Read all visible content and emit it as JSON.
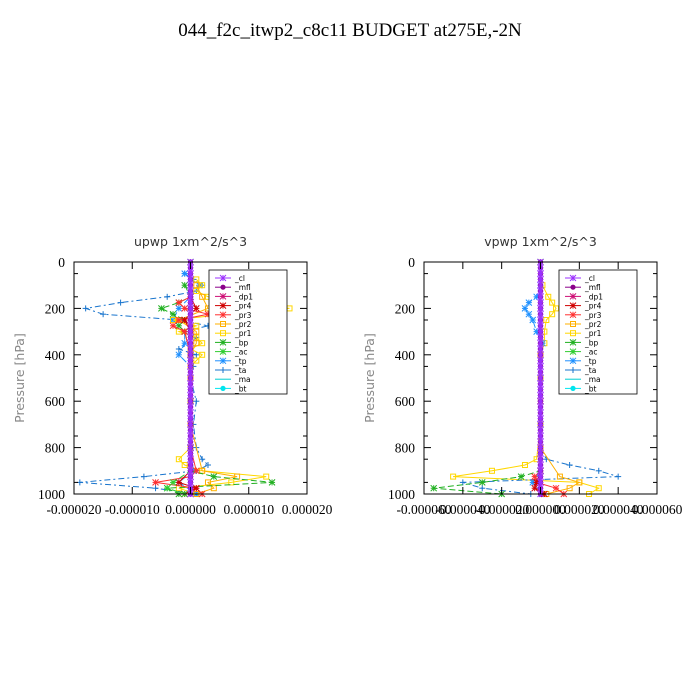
{
  "figure": {
    "title": "044_f2c_itwp2_c8c11  BUDGET at275E,-2N"
  },
  "legend_items": [
    {
      "label": "_cl",
      "color": "#9b30ff",
      "marker": "star"
    },
    {
      "label": "_mfl",
      "color": "#8b008b",
      "marker": "dot"
    },
    {
      "label": "_dp1",
      "color": "#cd1076",
      "marker": "star"
    },
    {
      "label": "_pr4",
      "color": "#d00000",
      "marker": "star"
    },
    {
      "label": "_pr3",
      "color": "#ff3030",
      "marker": "star"
    },
    {
      "label": "_pr2",
      "color": "#ffb000",
      "marker": "square"
    },
    {
      "label": "_pr1",
      "color": "#ffd700",
      "marker": "square"
    },
    {
      "label": "_bp",
      "color": "#20b020",
      "marker": "star"
    },
    {
      "label": "_ac",
      "color": "#32cd32",
      "marker": "star"
    },
    {
      "label": "_tp",
      "color": "#1e90ff",
      "marker": "star"
    },
    {
      "label": "_ta",
      "color": "#1874cd",
      "marker": "plus"
    },
    {
      "label": "_ma",
      "color": "#00ced1",
      "marker": "none"
    },
    {
      "label": "_bt",
      "color": "#00e5ee",
      "marker": "dot"
    }
  ],
  "chart_data": [
    {
      "type": "line",
      "title": "upwp  1xm^2/s^3",
      "ylabel": "Pressure [hPa]",
      "xlim": [
        -2e-05,
        2e-05
      ],
      "ylim": [
        1000,
        0
      ],
      "x_ticks": [
        "-0.000020",
        "-0.000010",
        "0.000000",
        "0.000010",
        "0.000020"
      ],
      "y_ticks": [
        "0",
        "200",
        "400",
        "600",
        "800",
        "1000"
      ],
      "series": [
        {
          "name": "_ta",
          "color": "#1874cd",
          "dash": "6,3,2,3",
          "marker": "plus",
          "y": [
            50,
            75,
            100,
            125,
            150,
            175,
            200,
            225,
            250,
            275,
            300,
            325,
            350,
            375,
            400,
            425,
            450,
            500,
            600,
            700,
            800,
            850,
            875,
            900,
            925,
            950,
            975,
            1000
          ],
          "x": [
            -1e-06,
            5e-07,
            2e-06,
            1e-06,
            -4e-06,
            -1.2e-05,
            -1.8e-05,
            -1.5e-05,
            -2e-06,
            3e-06,
            -1e-06,
            1e-06,
            0.0,
            -2e-06,
            1e-06,
            0.0,
            5e-07,
            0.0,
            1e-06,
            5e-07,
            1e-06,
            2e-06,
            3e-06,
            1e-06,
            -8e-06,
            -1.9e-05,
            -6e-06,
            1e-06
          ]
        },
        {
          "name": "_tp",
          "color": "#1e90ff",
          "dash": "6,3",
          "marker": "star",
          "y": [
            50,
            100,
            150,
            200,
            250,
            300,
            350,
            400,
            450,
            500,
            600,
            700,
            800,
            900,
            950,
            1000
          ],
          "x": [
            -1e-06,
            1.5e-06,
            0.0,
            -2e-06,
            -3e-06,
            -1e-06,
            -1e-06,
            -2e-06,
            0.0,
            0.0,
            0.0,
            0.0,
            0.0,
            5e-07,
            -2e-06,
            1e-06
          ]
        },
        {
          "name": "_pr1",
          "color": "#ffd700",
          "dash": "",
          "marker": "square",
          "y": [
            75,
            100,
            125,
            150,
            175,
            200,
            225,
            250,
            275,
            300,
            325,
            350,
            375,
            400,
            425,
            450,
            500,
            600,
            700,
            800,
            850,
            875,
            900,
            925,
            950,
            975,
            1000
          ],
          "x": [
            1e-06,
            2e-06,
            1e-06,
            3e-06,
            8e-06,
            1.7e-05,
            6e-06,
            -3e-06,
            1e-06,
            -2e-06,
            1e-06,
            2e-06,
            0.0,
            2e-06,
            1e-06,
            0.0,
            0.0,
            0.0,
            0.0,
            0.0,
            -2e-06,
            -1e-06,
            2e-06,
            1.3e-05,
            7e-06,
            -2e-06,
            1e-06
          ]
        },
        {
          "name": "_pr2",
          "color": "#ffb000",
          "dash": "",
          "marker": "square",
          "y": [
            100,
            150,
            200,
            250,
            300,
            350,
            400,
            500,
            700,
            900,
            925,
            950,
            975,
            1000
          ],
          "x": [
            1e-06,
            2e-06,
            3e-06,
            -2e-06,
            1e-06,
            1e-06,
            0.0,
            0.0,
            0.0,
            2e-06,
            8e-06,
            3e-06,
            4e-06,
            1e-06
          ]
        },
        {
          "name": "_bp",
          "color": "#20b020",
          "dash": "6,3",
          "marker": "star",
          "y": [
            100,
            150,
            175,
            200,
            225,
            250,
            275,
            300,
            400,
            600,
            800,
            900,
            925,
            950,
            975,
            1000
          ],
          "x": [
            -1e-06,
            0.0,
            -2e-06,
            -5e-06,
            -3e-06,
            -1e-06,
            -2e-06,
            -1e-06,
            0.0,
            0.0,
            0.0,
            0.0,
            4e-06,
            1.4e-05,
            -4e-06,
            -2e-06
          ]
        },
        {
          "name": "_pr3",
          "color": "#ff3030",
          "dash": "",
          "marker": "star",
          "y": [
            150,
            175,
            200,
            225,
            250,
            275,
            300,
            400,
            600,
            800,
            900,
            925,
            950,
            975,
            1000
          ],
          "x": [
            0.0,
            -2e-06,
            -1e-06,
            3e-06,
            -2e-06,
            -3e-06,
            -1e-06,
            0.0,
            0.0,
            0.0,
            1e-06,
            0.0,
            -6e-06,
            1e-06,
            2e-06
          ]
        },
        {
          "name": "_pr4",
          "color": "#d00000",
          "dash": "",
          "marker": "star",
          "y": [
            150,
            200,
            250,
            300,
            400,
            600,
            800,
            900,
            950,
            975,
            1000
          ],
          "x": [
            0.0,
            1e-06,
            -1e-06,
            0.0,
            0.0,
            0.0,
            0.0,
            0.0,
            -2e-06,
            1e-06,
            -1e-06
          ]
        },
        {
          "name": "_ac",
          "color": "#32cd32",
          "dash": "6,3",
          "marker": "star",
          "y": [
            0,
            200,
            400,
            600,
            800,
            900,
            950,
            975,
            1000
          ],
          "x": [
            0.0,
            0.0,
            0.0,
            0.0,
            0.0,
            0.0,
            -3e-06,
            -4e-06,
            -1e-06
          ]
        },
        {
          "name": "_mfl",
          "color": "#8b008b",
          "dash": "",
          "marker": "dot",
          "y": [
            0,
            1000
          ],
          "x": [
            0.0,
            0.0
          ]
        },
        {
          "name": "_cl",
          "color": "#9b30ff",
          "dash": "",
          "marker": "star",
          "y": [
            0,
            1000
          ],
          "x": [
            0.0,
            0.0
          ]
        }
      ]
    },
    {
      "type": "line",
      "title": "vpwp  1xm^2/s^3",
      "ylabel": "Pressure [hPa]",
      "xlim": [
        -6e-05,
        6e-05
      ],
      "ylim": [
        1000,
        0
      ],
      "x_ticks": [
        "-0.000060",
        "-0.000040",
        "-0.000020",
        "0.000000",
        "0.000020",
        "0.000040",
        "0.000060"
      ],
      "y_ticks": [
        "0",
        "200",
        "400",
        "600",
        "800",
        "1000"
      ],
      "series": [
        {
          "name": "_pr1",
          "color": "#ffd700",
          "dash": "",
          "marker": "square",
          "y": [
            100,
            150,
            175,
            200,
            225,
            250,
            300,
            350,
            400,
            500,
            700,
            850,
            875,
            900,
            925,
            950,
            975,
            1000
          ],
          "x": [
            1e-06,
            4e-06,
            6e-06,
            8e-06,
            6e-06,
            3e-06,
            2e-06,
            2e-06,
            0.0,
            0.0,
            0.0,
            -2e-06,
            -8e-06,
            -2.5e-05,
            -4.5e-05,
            2e-05,
            3e-05,
            2.5e-05
          ]
        },
        {
          "name": "_tp",
          "color": "#1e90ff",
          "dash": "6,3",
          "marker": "star",
          "y": [
            100,
            150,
            175,
            200,
            225,
            250,
            300,
            350,
            400,
            500,
            700,
            900,
            950,
            1000
          ],
          "x": [
            0.0,
            -2e-06,
            -6e-06,
            -8e-06,
            -6e-06,
            -4e-06,
            -2e-06,
            1e-06,
            0.0,
            0.0,
            0.0,
            0.0,
            -4e-06,
            1e-06
          ]
        },
        {
          "name": "_ta",
          "color": "#1874cd",
          "dash": "6,3,2,3",
          "marker": "plus",
          "y": [
            200,
            400,
            600,
            800,
            850,
            875,
            900,
            925,
            950,
            975,
            1000
          ],
          "x": [
            0.0,
            0.0,
            0.0,
            0.0,
            3e-06,
            1.5e-05,
            3e-05,
            4e-05,
            -4e-05,
            -3e-05,
            -5e-06
          ]
        },
        {
          "name": "_bp",
          "color": "#20b020",
          "dash": "6,3",
          "marker": "star",
          "y": [
            0,
            600,
            900,
            925,
            950,
            975,
            1000
          ],
          "x": [
            0.0,
            0.0,
            0.0,
            -1e-05,
            -3e-05,
            -5.5e-05,
            -2e-05
          ]
        },
        {
          "name": "_pr2",
          "color": "#ffb000",
          "dash": "",
          "marker": "square",
          "y": [
            400,
            800,
            925,
            950,
            975,
            1000
          ],
          "x": [
            0.0,
            0.0,
            1e-05,
            2e-05,
            1.5e-05,
            3e-06
          ]
        },
        {
          "name": "_pr3",
          "color": "#ff3030",
          "dash": "",
          "marker": "star",
          "y": [
            600,
            900,
            925,
            950,
            975,
            1000
          ],
          "x": [
            0.0,
            0.0,
            -3e-06,
            -2e-06,
            8e-06,
            1.2e-05
          ]
        },
        {
          "name": "_pr4",
          "color": "#d00000",
          "dash": "",
          "marker": "star",
          "y": [
            600,
            900,
            950,
            975,
            1000
          ],
          "x": [
            0.0,
            0.0,
            -2e-06,
            -3e-06,
            2e-06
          ]
        },
        {
          "name": "_mfl",
          "color": "#8b008b",
          "dash": "",
          "marker": "dot",
          "y": [
            0,
            1000
          ],
          "x": [
            0.0,
            0.0
          ]
        },
        {
          "name": "_cl",
          "color": "#9b30ff",
          "dash": "",
          "marker": "star",
          "y": [
            0,
            1000
          ],
          "x": [
            0.0,
            0.0
          ]
        }
      ]
    }
  ]
}
